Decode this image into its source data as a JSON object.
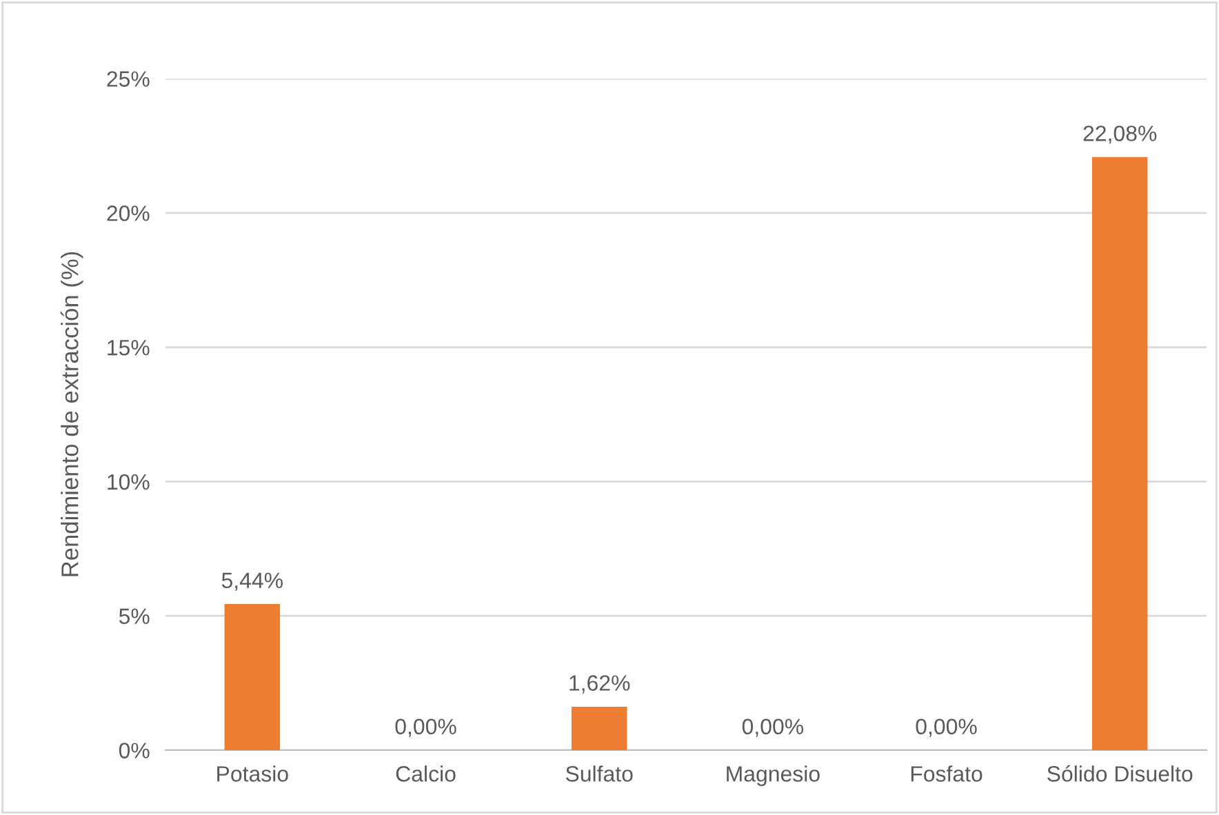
{
  "chart_data": {
    "type": "bar",
    "ylabel": "Rendimiento de extracción (%)",
    "categories": [
      "Potasio",
      "Calcio",
      "Sulfato",
      "Magnesio",
      "Fosfato",
      "Sólido Disuelto"
    ],
    "values": [
      5.44,
      0,
      1.62,
      0,
      0,
      22.08
    ],
    "value_labels": [
      "5,44%",
      "0,00%",
      "1,62%",
      "0,00%",
      "0,00%",
      "22,08%"
    ],
    "color": "#ed7d31",
    "ylim": [
      0,
      25
    ],
    "yticks": [
      {
        "value": 0,
        "label": "0%"
      },
      {
        "value": 5,
        "label": "5%"
      },
      {
        "value": 10,
        "label": "10%"
      },
      {
        "value": 15,
        "label": "15%"
      },
      {
        "value": 20,
        "label": "20%"
      },
      {
        "value": 25,
        "label": "25%"
      }
    ],
    "grid": "y",
    "legend": false
  }
}
